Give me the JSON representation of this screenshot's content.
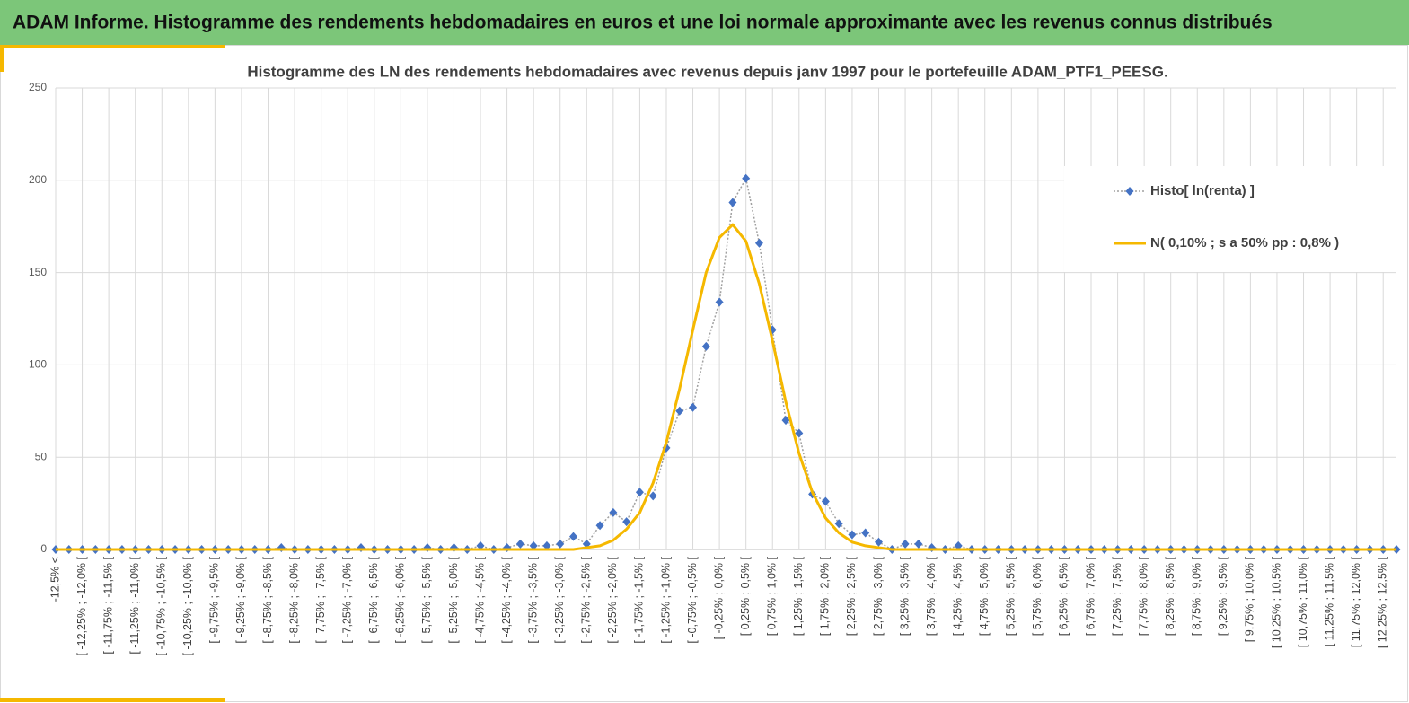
{
  "header": {
    "title": "ADAM Informe. Histogramme des rendements hebdomadaires en euros et une loi normale approximante avec les revenus connus distribués"
  },
  "chart_data": {
    "type": "line",
    "title": "Histogramme des LN des rendements hebdomadaires avec revenus depuis janv 1997 pour le portefeuille ADAM_PTF1_PEESG.",
    "categories": [
      "-12,5% <",
      null,
      "[ -12,25% ; -12,0% [",
      null,
      "[ -11,75% ; -11,5% [",
      null,
      "[ -11,25% ; -11,0% [",
      null,
      "[ -10,75% ; -10,5% [",
      null,
      "[ -10,25% ; -10,0% [",
      null,
      "[ -9,75% ; -9,5% [",
      null,
      "[ -9,25% ; -9,0% [",
      null,
      "[ -8,75% ; -8,5% [",
      null,
      "[ -8,25% ; -8,0% [",
      null,
      "[ -7,75% ; -7,5% [",
      null,
      "[ -7,25% ; -7,0% [",
      null,
      "[ -6,75% ; -6,5% [",
      null,
      "[ -6,25% ; -6,0% [",
      null,
      "[ -5,75% ; -5,5% [",
      null,
      "[ -5,25% ; -5,0% [",
      null,
      "[ -4,75% ; -4,5% [",
      null,
      "[ -4,25% ; -4,0% [",
      null,
      "[ -3,75% ; -3,5% [",
      null,
      "[ -3,25% ; -3,0% [",
      null,
      "[ -2,75% ; -2,5% [",
      null,
      "[ -2,25% ; -2,0% [",
      null,
      "[ -1,75% ; -1,5% [",
      null,
      "[ -1,25% ; -1,0% [",
      null,
      "[ -0,75% ; -0,5% [",
      null,
      "[ -0,25% ; 0,0% [",
      null,
      "[ 0,25% ; 0,5% [",
      null,
      "[ 0,75% ; 1,0% [",
      null,
      "[ 1,25% ; 1,5% [",
      null,
      "[ 1,75% ; 2,0% [",
      null,
      "[ 2,25% ; 2,5% [",
      null,
      "[ 2,75% ; 3,0% [",
      null,
      "[ 3,25% ; 3,5% [",
      null,
      "[ 3,75% ; 4,0% [",
      null,
      "[ 4,25% ; 4,5% [",
      null,
      "[ 4,75% ; 5,0% [",
      null,
      "[ 5,25% ; 5,5% [",
      null,
      "[ 5,75% ; 6,0% [",
      null,
      "[ 6,25% ; 6,5% [",
      null,
      "[ 6,75% ; 7,0% [",
      null,
      "[ 7,25% ; 7,5% [",
      null,
      "[ 7,75% ; 8,0% [",
      null,
      "[ 8,25% ; 8,5% [",
      null,
      "[ 8,75% ; 9,0% [",
      null,
      "[ 9,25% ; 9,5% [",
      null,
      "[ 9,75% ; 10,0% [",
      null,
      "[ 10,25% ; 10,5% [",
      null,
      "[ 10,75% ; 11,0% [",
      null,
      "[ 11,25% ; 11,5% [",
      null,
      "[ 11,75% ; 12,0% [",
      null,
      "[ 12,25% ; 12,5% [",
      null
    ],
    "series": [
      {
        "name": "Histo[ ln(renta) ]",
        "color": "#4472c4",
        "values": [
          0,
          0,
          0,
          0,
          0,
          0,
          0,
          0,
          0,
          0,
          0,
          0,
          0,
          0,
          0,
          0,
          0,
          1,
          0,
          0,
          0,
          0,
          0,
          1,
          0,
          0,
          0,
          0,
          1,
          0,
          1,
          0,
          2,
          0,
          1,
          3,
          2,
          2,
          3,
          7,
          3,
          13,
          20,
          15,
          31,
          29,
          55,
          75,
          77,
          110,
          134,
          188,
          201,
          166,
          119,
          70,
          63,
          30,
          26,
          14,
          8,
          9,
          4,
          0,
          3,
          3,
          1,
          0,
          2,
          0,
          0,
          0,
          0,
          0,
          0,
          0,
          0,
          0,
          0,
          0,
          0,
          0,
          0,
          0,
          0,
          0,
          0,
          0,
          0,
          0,
          0,
          0,
          0,
          0,
          0,
          0,
          0,
          0,
          0,
          0,
          0,
          0
        ]
      },
      {
        "name": "N( 0,10% ; s a 50% pp : 0,8% )",
        "color": "#f5b800",
        "values": [
          0,
          0,
          0,
          0,
          0,
          0,
          0,
          0,
          0,
          0,
          0,
          0,
          0,
          0,
          0,
          0,
          0,
          0,
          0,
          0,
          0,
          0,
          0,
          0,
          0,
          0,
          0,
          0,
          0,
          0,
          0,
          0,
          0,
          0,
          0,
          0,
          0,
          0,
          0,
          0,
          1,
          2,
          5,
          11,
          20,
          36,
          58,
          87,
          119,
          150,
          169,
          176,
          167,
          144,
          113,
          80,
          52,
          31,
          17,
          9,
          4,
          2,
          1,
          0,
          0,
          0,
          0,
          0,
          0,
          0,
          0,
          0,
          0,
          0,
          0,
          0,
          0,
          0,
          0,
          0,
          0,
          0,
          0,
          0,
          0,
          0,
          0,
          0,
          0,
          0,
          0,
          0,
          0,
          0,
          0,
          0,
          0,
          0,
          0,
          0,
          0,
          0
        ]
      }
    ],
    "ylim": [
      0,
      250
    ],
    "yticks": [
      0,
      50,
      100,
      150,
      200,
      250
    ],
    "grid": true,
    "legend": "right"
  }
}
